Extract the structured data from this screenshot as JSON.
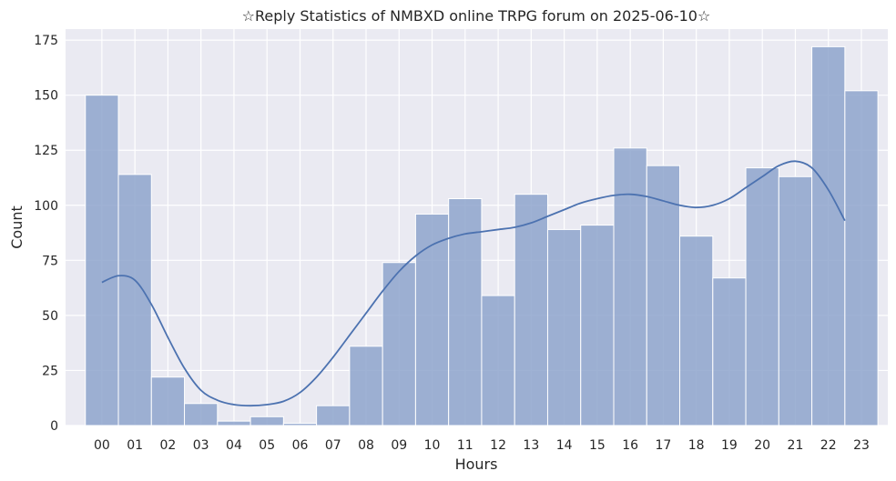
{
  "chart_data": {
    "type": "bar",
    "title": "☆Reply Statistics of NMBXD online TRPG forum on 2025-06-10☆",
    "xlabel": "Hours",
    "ylabel": "Count",
    "categories": [
      "00",
      "01",
      "02",
      "03",
      "04",
      "05",
      "06",
      "07",
      "08",
      "09",
      "10",
      "11",
      "12",
      "13",
      "14",
      "15",
      "16",
      "17",
      "18",
      "19",
      "20",
      "21",
      "22",
      "23"
    ],
    "values": [
      150,
      114,
      22,
      10,
      2,
      4,
      1,
      9,
      36,
      74,
      96,
      103,
      59,
      105,
      89,
      91,
      126,
      118,
      86,
      67,
      117,
      113,
      172,
      152
    ],
    "kde": [
      [
        0,
        65
      ],
      [
        0.5,
        68
      ],
      [
        1,
        66
      ],
      [
        1.5,
        55
      ],
      [
        2,
        40
      ],
      [
        2.5,
        26
      ],
      [
        3,
        16
      ],
      [
        3.5,
        11.5
      ],
      [
        4,
        9.5
      ],
      [
        4.5,
        9
      ],
      [
        5,
        9.5
      ],
      [
        5.5,
        11
      ],
      [
        6,
        15
      ],
      [
        6.5,
        22
      ],
      [
        7,
        31
      ],
      [
        7.5,
        41
      ],
      [
        8,
        51
      ],
      [
        8.5,
        61
      ],
      [
        9,
        70
      ],
      [
        9.5,
        77
      ],
      [
        10,
        82
      ],
      [
        10.5,
        85
      ],
      [
        11,
        87
      ],
      [
        11.5,
        88
      ],
      [
        12,
        89
      ],
      [
        12.5,
        90
      ],
      [
        13,
        92
      ],
      [
        13.5,
        95
      ],
      [
        14,
        98
      ],
      [
        14.5,
        101
      ],
      [
        15,
        103
      ],
      [
        15.5,
        104.5
      ],
      [
        16,
        105
      ],
      [
        16.5,
        104
      ],
      [
        17,
        102
      ],
      [
        17.5,
        100
      ],
      [
        18,
        99
      ],
      [
        18.5,
        100
      ],
      [
        19,
        103
      ],
      [
        19.5,
        108
      ],
      [
        20,
        113
      ],
      [
        20.5,
        118
      ],
      [
        21,
        120
      ],
      [
        21.5,
        117
      ],
      [
        22,
        107
      ],
      [
        22.5,
        93
      ]
    ],
    "ylim": [
      0,
      180
    ],
    "yticks": [
      0,
      25,
      50,
      75,
      100,
      125,
      150,
      175
    ],
    "grid": true,
    "colors": {
      "background": "#eaeaf2",
      "grid": "#ffffff",
      "bar": "#8ea5cd",
      "line": "#4c72b0"
    }
  }
}
